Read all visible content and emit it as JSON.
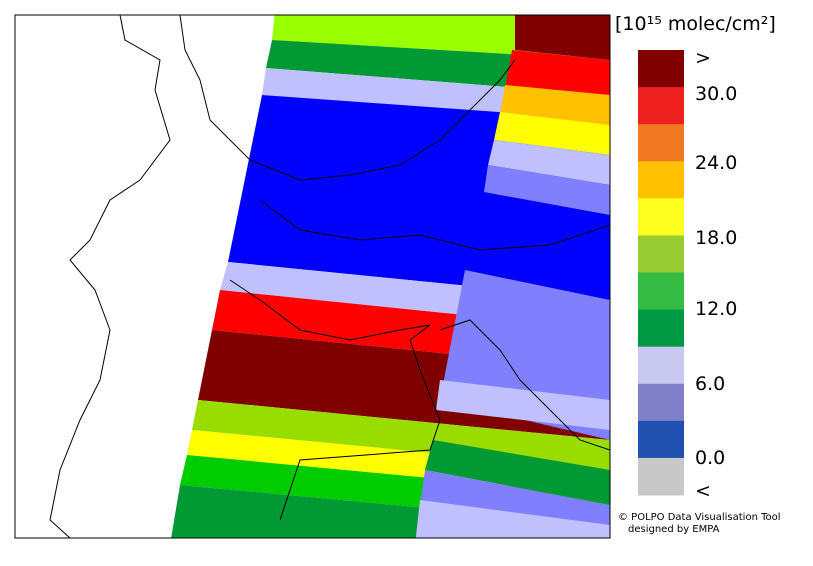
{
  "legend": {
    "unit": "[10¹⁵ molec/cm²]",
    "labels": [
      ">",
      "30.0",
      "24.0",
      "18.0",
      "12.0",
      "6.0",
      "0.0",
      "<"
    ],
    "colors": [
      "#800000",
      "#ee2020",
      "#f07820",
      "#ffc000",
      "#ffff20",
      "#99cc33",
      "#33bb44",
      "#009944",
      "#c8c8f0",
      "#8080c8",
      "#2050b0",
      "#c8c8c8"
    ]
  },
  "credits": {
    "line1": "© POLPO Data Visualisation Tool",
    "line2": "designed by EMPA"
  }
}
